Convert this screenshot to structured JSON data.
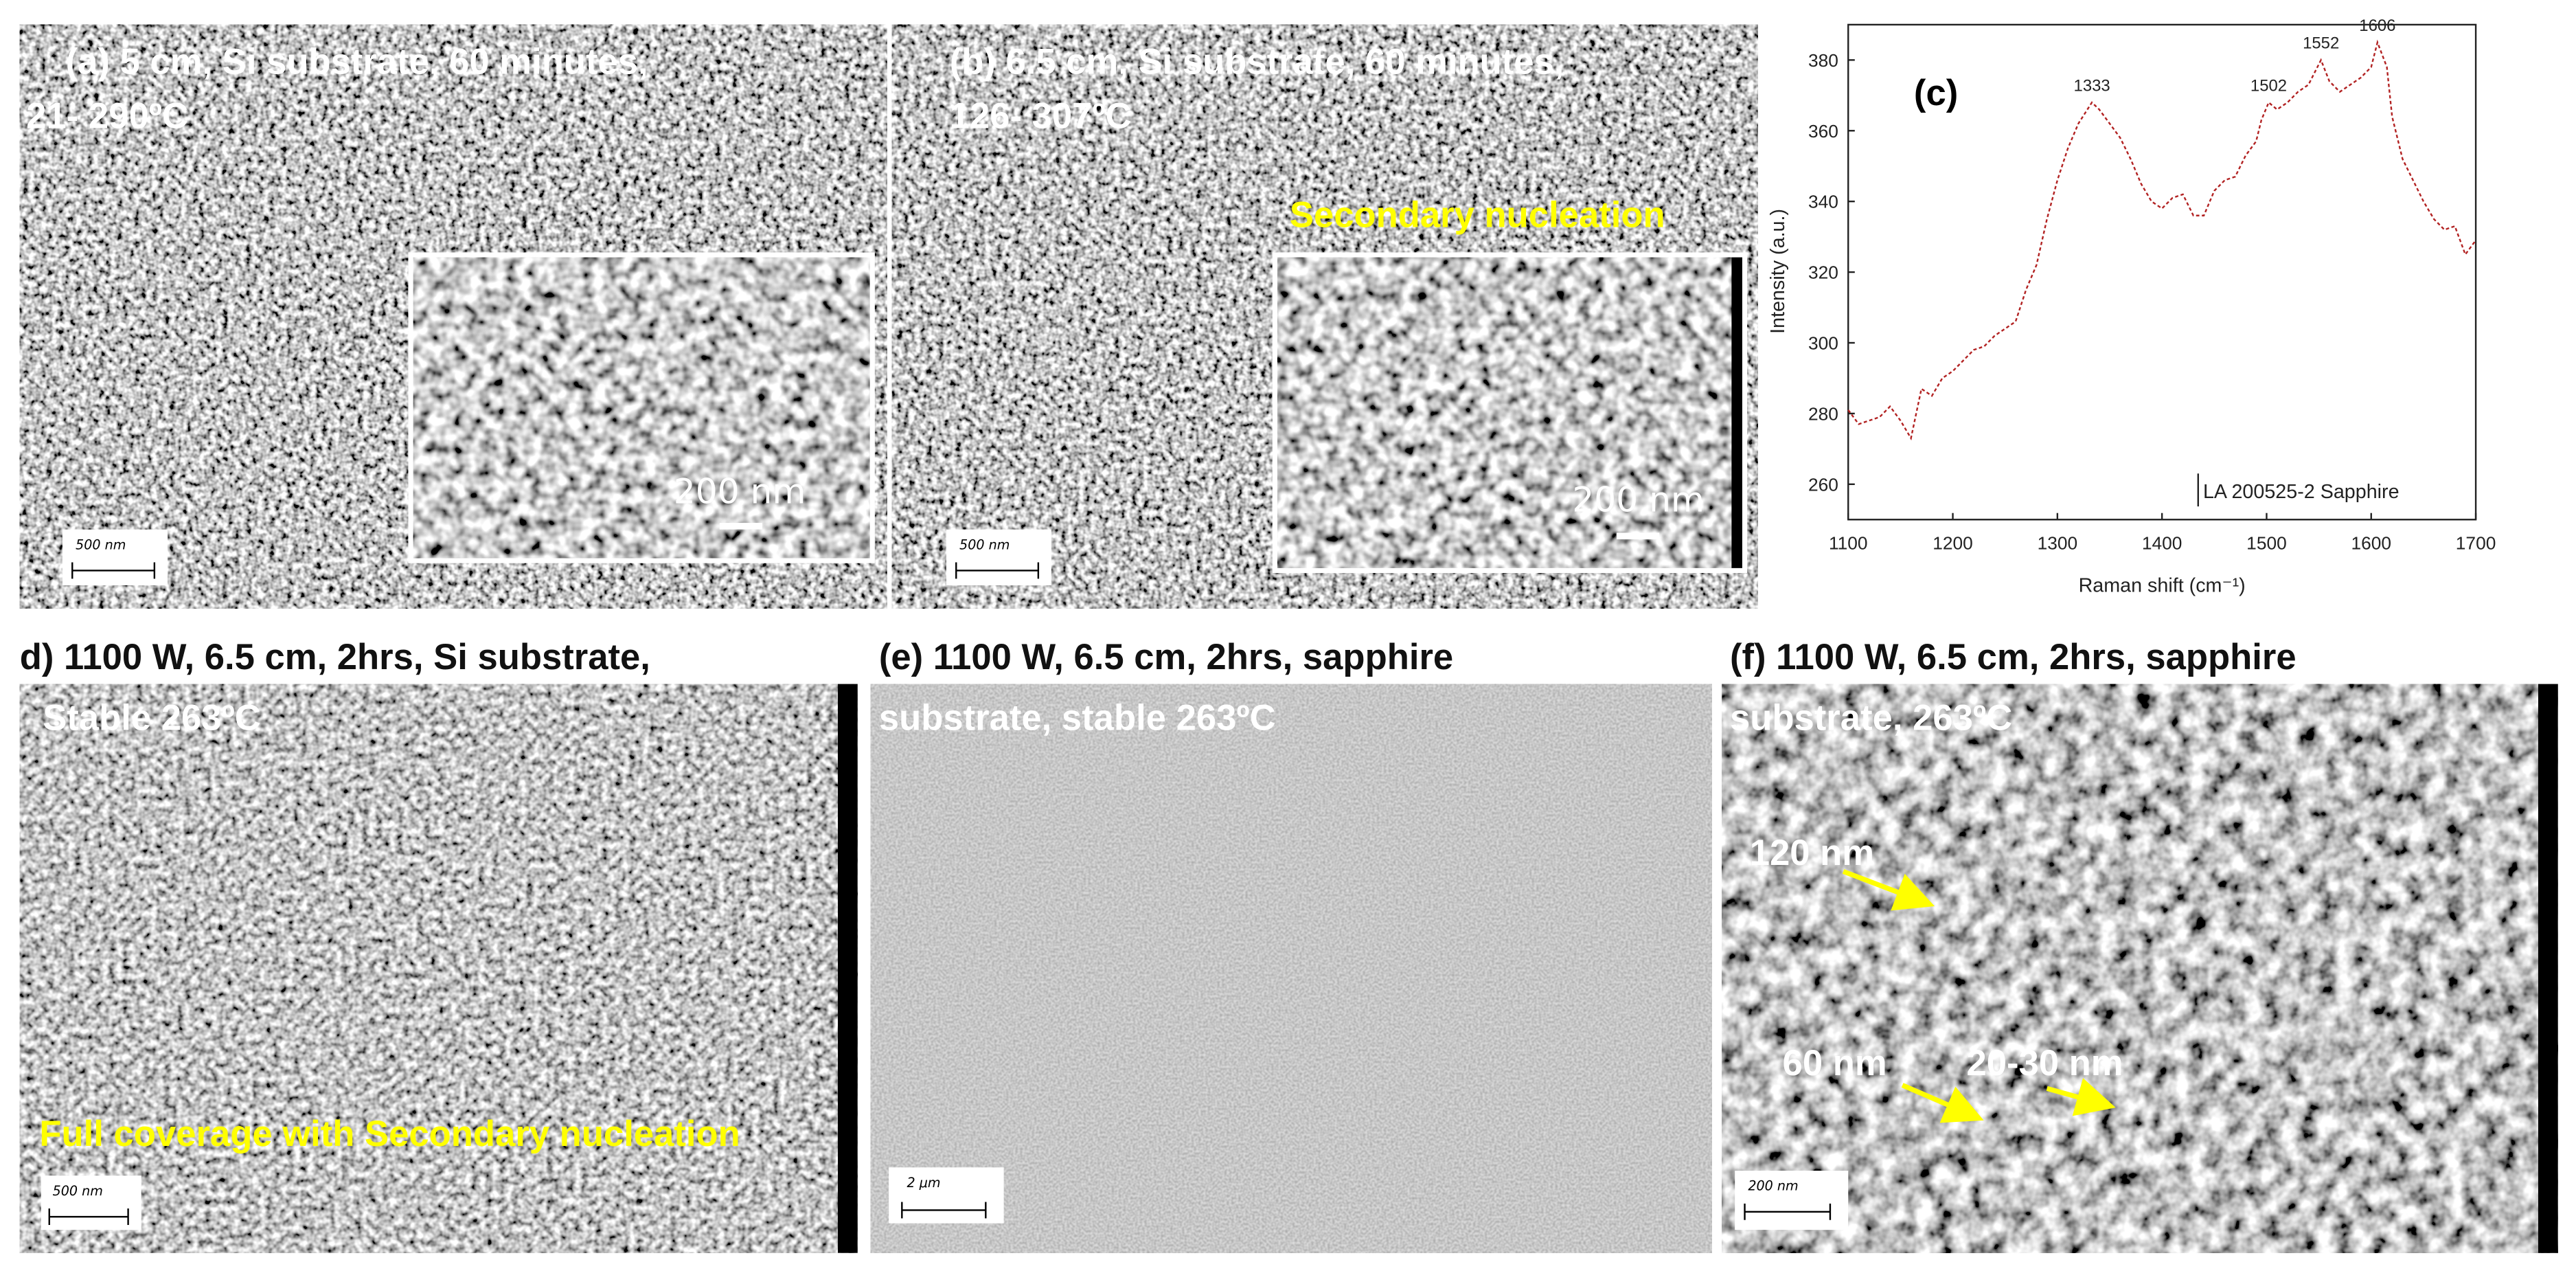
{
  "panels": [
    {
      "label_lines": [
        "(a)  5 cm, Si substrate, 60 minutes,",
        "21- 290ºC"
      ],
      "scale_bar": "500 nm",
      "inset_scale_bar": "200 nm"
    },
    {
      "label_lines": [
        "(b) 6.5 cm, Si substrate, 60 minutes,",
        "126- 307ºC"
      ],
      "annotation": "Secondary nucleation",
      "scale_bar": "500 nm",
      "inset_scale_bar": "200 nm"
    },
    {
      "label_lines": [
        "d) 1100 W, 6.5 cm, 2hrs, Si substrate,",
        "Stable 263ºC"
      ],
      "annotation": "Full coverage with Secondary nucleation",
      "scale_bar": "500 nm"
    },
    {
      "label_lines": [
        "(e) 1100 W, 6.5 cm, 2hrs, sapphire",
        "substrate, stable 263ºC"
      ],
      "scale_bar": "2 μm"
    },
    {
      "label_lines": [
        "(f) 1100 W, 6.5 cm, 2hrs, sapphire",
        "substrate, 263ºC"
      ],
      "scale_bar": "200 nm",
      "size_labels": [
        "120 nm",
        "60 nm",
        "20-30 nm"
      ]
    }
  ],
  "chart_data": {
    "type": "line",
    "panel_label": "(c)",
    "x_label": "Raman shift (cm⁻¹)",
    "y_label": "Intensity (a.u.)",
    "x": [
      1100,
      1110,
      1120,
      1130,
      1140,
      1150,
      1160,
      1165,
      1170,
      1180,
      1190,
      1200,
      1210,
      1220,
      1230,
      1240,
      1250,
      1260,
      1270,
      1280,
      1290,
      1300,
      1310,
      1320,
      1333,
      1340,
      1350,
      1360,
      1370,
      1380,
      1390,
      1400,
      1410,
      1420,
      1430,
      1440,
      1450,
      1460,
      1470,
      1480,
      1490,
      1495,
      1502,
      1510,
      1520,
      1530,
      1540,
      1552,
      1560,
      1570,
      1580,
      1590,
      1600,
      1606,
      1615,
      1620,
      1630,
      1640,
      1650,
      1660,
      1670,
      1680,
      1690,
      1700
    ],
    "series": [
      {
        "name": "LA 200525-2 Sapphire",
        "color": "#b22222",
        "values": [
          281,
          277,
          278,
          279,
          282,
          278,
          273,
          280,
          287,
          285,
          290,
          292,
          295,
          298,
          299,
          302,
          304,
          306,
          315,
          322,
          335,
          346,
          355,
          362,
          368,
          366,
          362,
          358,
          352,
          345,
          340,
          338,
          341,
          342,
          336,
          336,
          343,
          346,
          347,
          353,
          357,
          363,
          368,
          366,
          368,
          371,
          373,
          380,
          374,
          371,
          373,
          375,
          378,
          385,
          378,
          364,
          352,
          346,
          340,
          335,
          332,
          333,
          325,
          329
        ]
      }
    ],
    "peak_labels": [
      1333,
      1502,
      1552,
      1606
    ],
    "xlim": [
      1100,
      1700
    ],
    "xticks": [
      1100,
      1200,
      1300,
      1400,
      1500,
      1600,
      1700
    ],
    "ylim": [
      250,
      390
    ],
    "yticks": [
      260,
      280,
      300,
      320,
      340,
      360,
      380
    ]
  }
}
